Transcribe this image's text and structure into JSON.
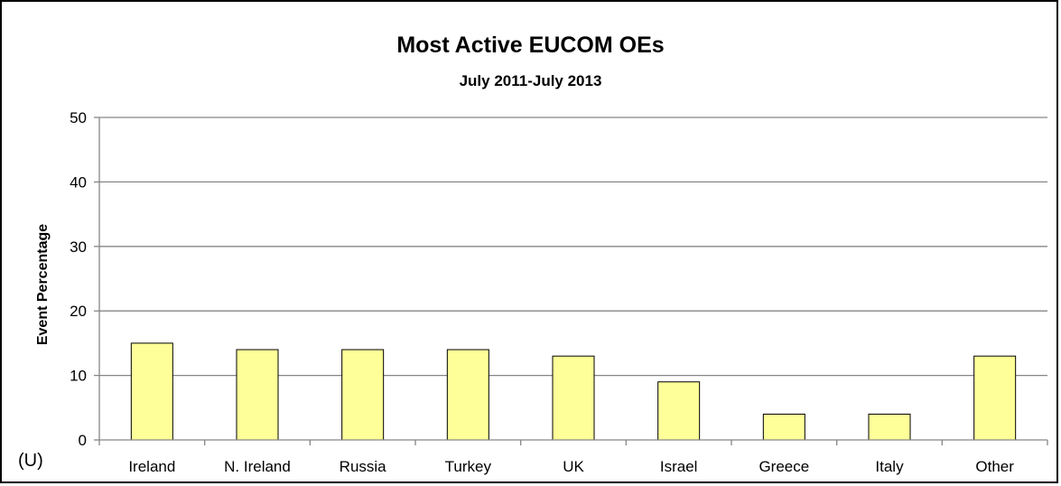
{
  "chart_data": {
    "type": "bar",
    "title": "Most Active EUCOM OEs",
    "subtitle": "July 2011-July 2013",
    "xlabel": "",
    "ylabel": "Event Percentage",
    "categories": [
      "Ireland",
      "N. Ireland",
      "Russia",
      "Turkey",
      "UK",
      "Israel",
      "Greece",
      "Italy",
      "Other"
    ],
    "values": [
      15,
      14,
      14,
      14,
      13,
      9,
      4,
      4,
      13
    ],
    "ylim": [
      0,
      50
    ],
    "yticks": [
      0,
      10,
      20,
      30,
      40,
      50
    ],
    "grid": true,
    "legend": "none",
    "colors": {
      "bar_fill": "#FFFF99",
      "bar_stroke": "#000000",
      "grid": "#868686"
    }
  },
  "marking": "(U)"
}
